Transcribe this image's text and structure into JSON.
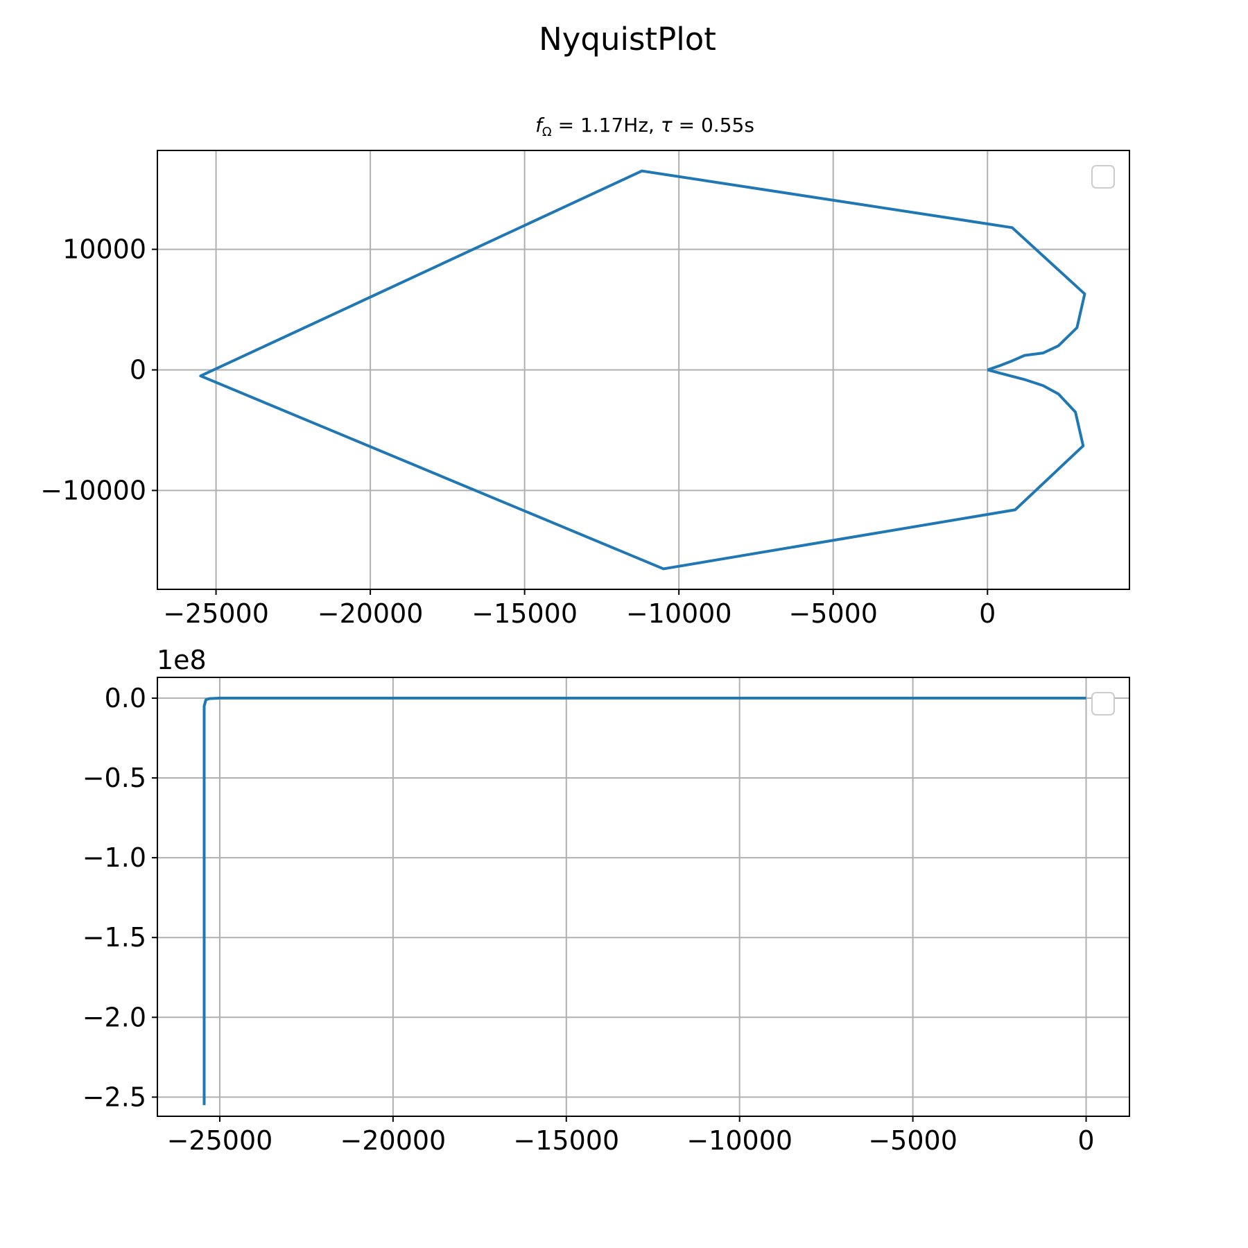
{
  "figure": {
    "suptitle": "NyquistPlot"
  },
  "chart_data": [
    {
      "type": "line",
      "title": "f_Ω = 1.17Hz, τ = 0.55s",
      "title_parts": {
        "f": "f",
        "sub": "Ω",
        "rest": " = 1.17Hz, ",
        "tau": "τ",
        "rest2": " = 0.55s"
      },
      "xlabel": "",
      "ylabel": "",
      "xlim": [
        -26900,
        4600
      ],
      "ylim": [
        -18200,
        18200
      ],
      "xticks": [
        -25000,
        -20000,
        -15000,
        -10000,
        -5000,
        0
      ],
      "xtick_labels": [
        "−25000",
        "−20000",
        "−15000",
        "−10000",
        "−5000",
        "0"
      ],
      "yticks": [
        10000,
        0,
        -10000
      ],
      "ytick_labels": [
        "10000",
        "0",
        "−10000"
      ],
      "grid": true,
      "legend": "upper right (empty)",
      "color": "#1f77b4",
      "series": [
        {
          "x": [
            0,
            400,
            800,
            1200,
            1800,
            2300,
            2900,
            3150,
            800,
            -11200,
            -25500,
            -10500,
            900,
            3100,
            2850,
            2300,
            1800,
            1200,
            600,
            0
          ],
          "y": [
            0,
            350,
            750,
            1200,
            1400,
            2000,
            3500,
            6300,
            11800,
            16500,
            -500,
            -16500,
            -11600,
            -6300,
            -3500,
            -2000,
            -1300,
            -800,
            -400,
            0
          ]
        }
      ]
    },
    {
      "type": "line",
      "title": "",
      "xlabel": "",
      "ylabel": "",
      "xlim": [
        -26800,
        1250
      ],
      "ylim": [
        -2.62,
        0.13
      ],
      "y_offset_text": "1e8",
      "xticks": [
        -25000,
        -20000,
        -15000,
        -10000,
        -5000,
        0
      ],
      "xtick_labels": [
        "−25000",
        "−20000",
        "−15000",
        "−10000",
        "−5000",
        "0"
      ],
      "yticks": [
        0.0,
        -0.5,
        -1.0,
        -1.5,
        -2.0,
        -2.5
      ],
      "ytick_labels": [
        "0.0",
        "−0.5",
        "−1.0",
        "−1.5",
        "−2.0",
        "−2.5"
      ],
      "grid": true,
      "legend": "upper right (empty)",
      "color": "#1f77b4",
      "series": [
        {
          "x": [
            0,
            -5000,
            -10000,
            -20000,
            -25000,
            -25300,
            -25400,
            -25450,
            -25450
          ],
          "y": [
            0,
            0,
            0,
            0,
            0,
            -0.003,
            -0.01,
            -0.05,
            -2.55
          ]
        }
      ]
    }
  ]
}
